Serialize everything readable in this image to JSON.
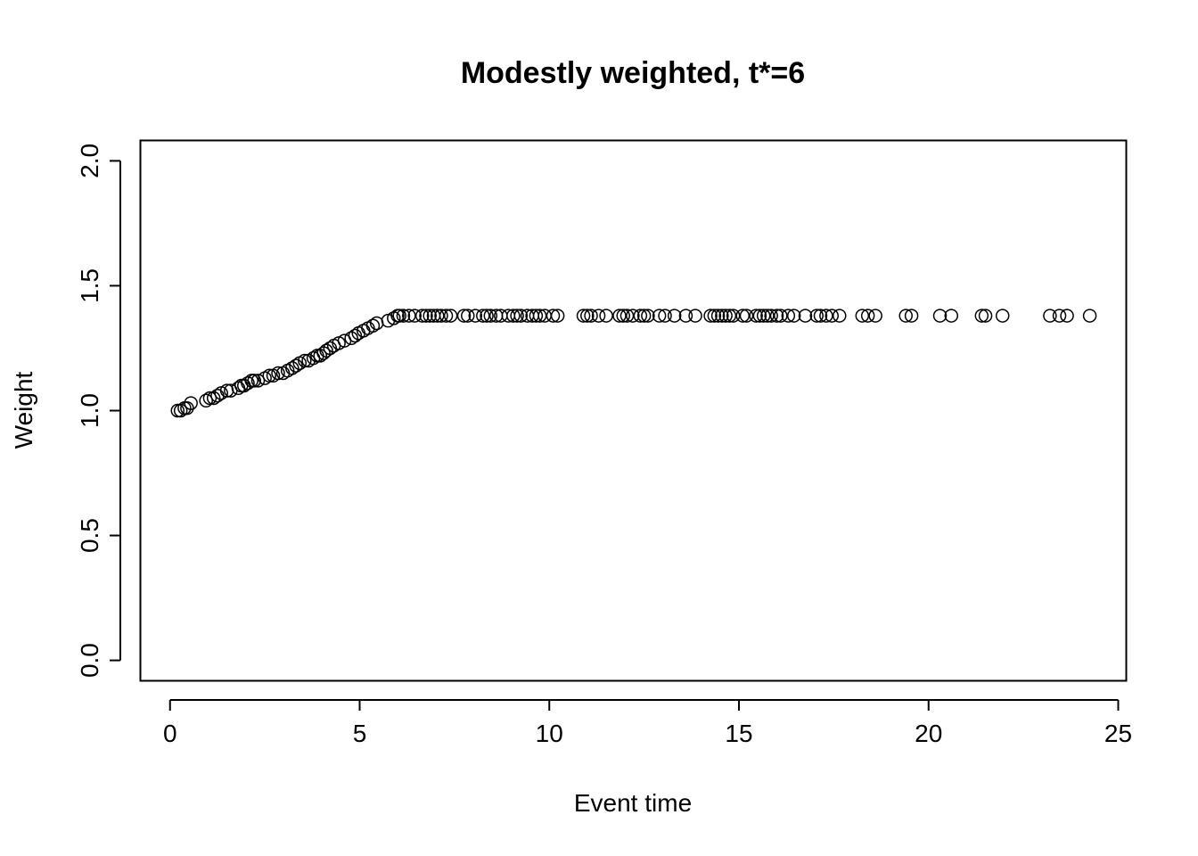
{
  "chart_data": {
    "type": "scatter",
    "title": "Modestly weighted, t*=6",
    "xlabel": "Event time",
    "ylabel": "Weight",
    "xlim": [
      -0.77,
      25.2
    ],
    "ylim": [
      -0.08,
      2.08
    ],
    "xticks": [
      0,
      5,
      10,
      15,
      20,
      25
    ],
    "xtick_labels": [
      "0",
      "5",
      "10",
      "15",
      "20",
      "25"
    ],
    "yticks": [
      0.0,
      0.5,
      1.0,
      1.5,
      2.0
    ],
    "ytick_labels": [
      "0.0",
      "0.5",
      "1.0",
      "1.5",
      "2.0"
    ],
    "grid": false,
    "legend": "none",
    "marker": "open-circle",
    "x": [
      0.2,
      0.28,
      0.38,
      0.45,
      0.55,
      0.95,
      1.05,
      1.15,
      1.25,
      1.35,
      1.5,
      1.6,
      1.8,
      1.88,
      1.95,
      2.05,
      2.15,
      2.22,
      2.32,
      2.5,
      2.62,
      2.72,
      2.85,
      2.98,
      3.1,
      3.22,
      3.32,
      3.42,
      3.55,
      3.65,
      3.78,
      3.88,
      3.96,
      4.05,
      4.12,
      4.22,
      4.32,
      4.45,
      4.6,
      4.78,
      4.88,
      4.97,
      5.1,
      5.22,
      5.35,
      5.45,
      5.75,
      5.9,
      6.0,
      6.05,
      6.15,
      6.3,
      6.45,
      6.65,
      6.75,
      6.85,
      6.95,
      7.05,
      7.15,
      7.28,
      7.4,
      7.75,
      7.85,
      8.05,
      8.25,
      8.35,
      8.45,
      8.6,
      8.72,
      8.92,
      9.05,
      9.15,
      9.25,
      9.42,
      9.55,
      9.65,
      9.75,
      9.88,
      10.1,
      10.22,
      10.9,
      11.0,
      11.1,
      11.3,
      11.5,
      11.85,
      11.95,
      12.05,
      12.2,
      12.4,
      12.5,
      12.6,
      12.9,
      13.05,
      13.3,
      13.6,
      13.85,
      14.25,
      14.35,
      14.45,
      14.55,
      14.65,
      14.75,
      14.85,
      15.1,
      15.2,
      15.45,
      15.55,
      15.65,
      15.75,
      15.85,
      16.0,
      16.1,
      16.3,
      16.45,
      16.75,
      17.05,
      17.15,
      17.3,
      17.45,
      17.65,
      18.25,
      18.4,
      18.6,
      19.4,
      19.55,
      20.3,
      20.6,
      21.4,
      21.5,
      21.95,
      23.2,
      23.45,
      23.65,
      24.25
    ],
    "y": [
      1.0,
      1.0,
      1.01,
      1.01,
      1.03,
      1.04,
      1.05,
      1.05,
      1.06,
      1.07,
      1.08,
      1.08,
      1.09,
      1.1,
      1.1,
      1.11,
      1.12,
      1.12,
      1.12,
      1.13,
      1.14,
      1.14,
      1.15,
      1.15,
      1.16,
      1.17,
      1.18,
      1.19,
      1.2,
      1.2,
      1.21,
      1.22,
      1.22,
      1.23,
      1.24,
      1.25,
      1.26,
      1.27,
      1.28,
      1.29,
      1.3,
      1.31,
      1.32,
      1.33,
      1.34,
      1.35,
      1.36,
      1.37,
      1.38,
      1.38,
      1.38,
      1.38,
      1.38,
      1.38,
      1.38,
      1.38,
      1.38,
      1.38,
      1.38,
      1.38,
      1.38,
      1.38,
      1.38,
      1.38,
      1.38,
      1.38,
      1.38,
      1.38,
      1.38,
      1.38,
      1.38,
      1.38,
      1.38,
      1.38,
      1.38,
      1.38,
      1.38,
      1.38,
      1.38,
      1.38,
      1.38,
      1.38,
      1.38,
      1.38,
      1.38,
      1.38,
      1.38,
      1.38,
      1.38,
      1.38,
      1.38,
      1.38,
      1.38,
      1.38,
      1.38,
      1.38,
      1.38,
      1.38,
      1.38,
      1.38,
      1.38,
      1.38,
      1.38,
      1.38,
      1.38,
      1.38,
      1.38,
      1.38,
      1.38,
      1.38,
      1.38,
      1.38,
      1.38,
      1.38,
      1.38,
      1.38,
      1.38,
      1.38,
      1.38,
      1.38,
      1.38,
      1.38,
      1.38,
      1.38,
      1.38,
      1.38,
      1.38,
      1.38,
      1.38,
      1.38,
      1.38,
      1.38,
      1.38,
      1.38,
      1.38
    ]
  }
}
